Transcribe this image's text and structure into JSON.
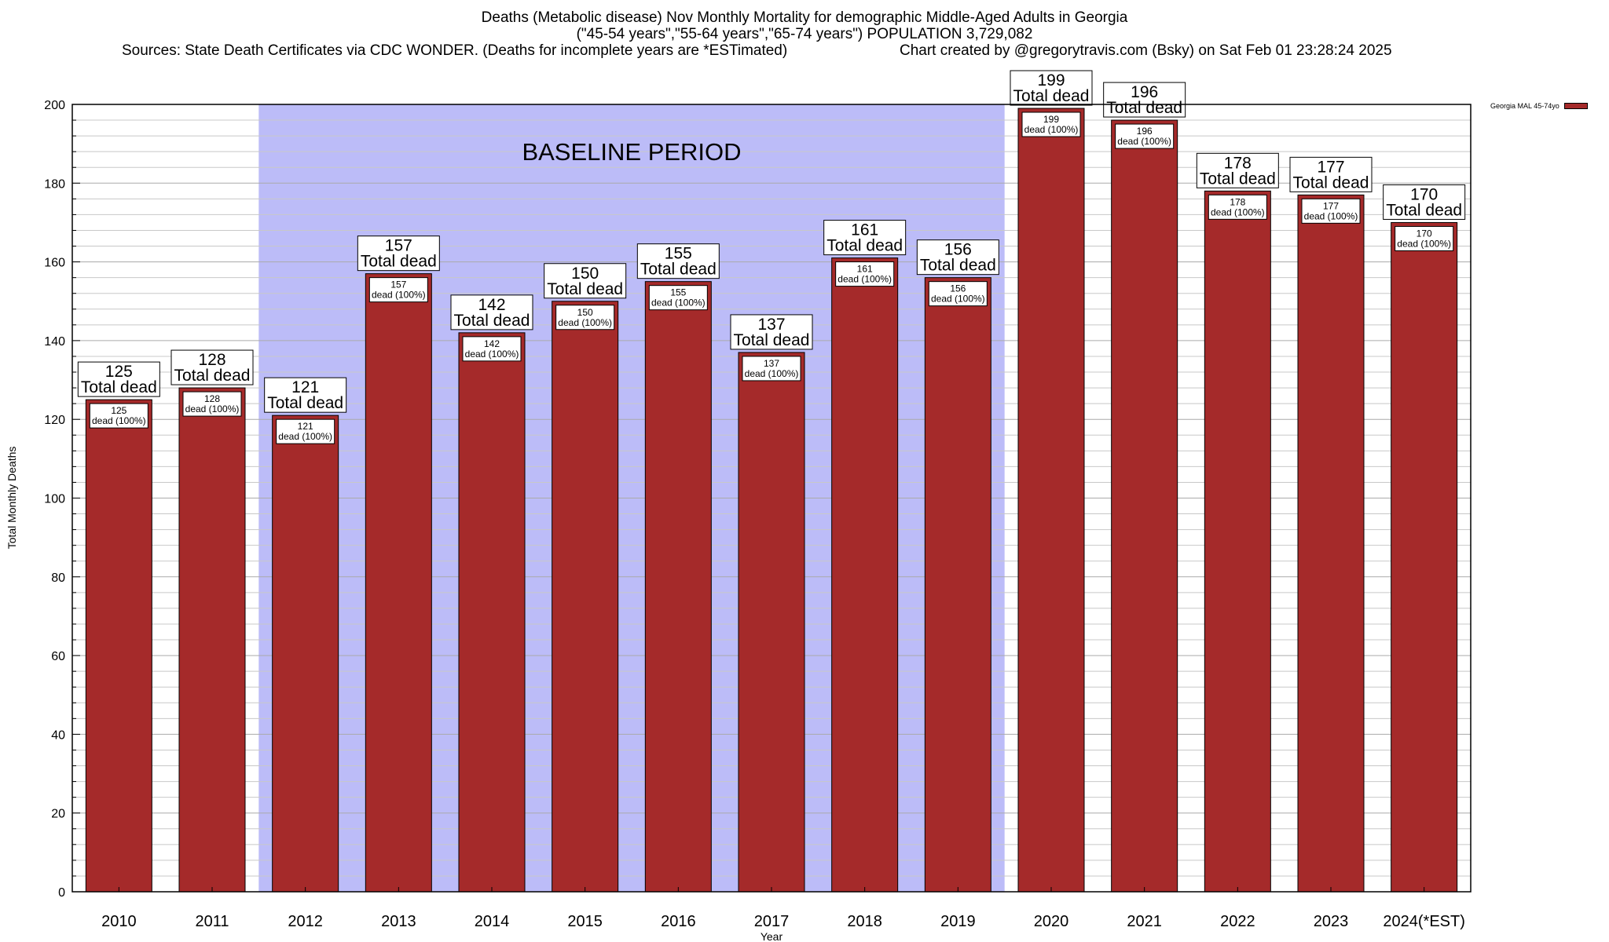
{
  "title_lines": [
    "Deaths (Metabolic disease) Nov Monthly Mortality for demographic Middle-Aged Adults in Georgia",
    "(\"45-54 years\",\"55-64 years\",\"65-74 years\") POPULATION 3,729,082"
  ],
  "sources": "Sources: State Death Certificates via CDC WONDER. (Deaths for incomplete years are *ESTimated)",
  "credit": "Chart created by @gregorytravis.com (Bsky) on Sat Feb 01 23:28:24 2025",
  "legend_label": "Georgia MAL 45-74yo",
  "colors": {
    "bar": "#a52a2a",
    "baseline_band": "#bcbcf8",
    "grid": "#c8c8c8"
  },
  "chart_data": {
    "type": "bar",
    "title": "Deaths (Metabolic disease) Nov Monthly Mortality for demographic Middle-Aged Adults in Georgia",
    "xlabel": "Year",
    "ylabel": "Total Monthly Deaths",
    "ylim": [
      0,
      200
    ],
    "yticks": [
      0,
      20,
      40,
      60,
      80,
      100,
      120,
      140,
      160,
      180,
      200
    ],
    "categories": [
      "2010",
      "2011",
      "2012",
      "2013",
      "2014",
      "2015",
      "2016",
      "2017",
      "2018",
      "2019",
      "2020",
      "2021",
      "2022",
      "2023",
      "2024(*EST)"
    ],
    "series": [
      {
        "name": "Georgia MAL 45-74yo",
        "values": [
          125,
          128,
          121,
          157,
          142,
          150,
          155,
          137,
          161,
          156,
          199,
          196,
          178,
          177,
          170
        ]
      }
    ],
    "top_label_suffix": "Total dead",
    "inner_label_suffix": "dead (100%)",
    "annotation": {
      "text": "BASELINE PERIOD",
      "from_category": "2012",
      "to_category": "2019"
    },
    "grid": true,
    "legend_position": "top-right"
  }
}
